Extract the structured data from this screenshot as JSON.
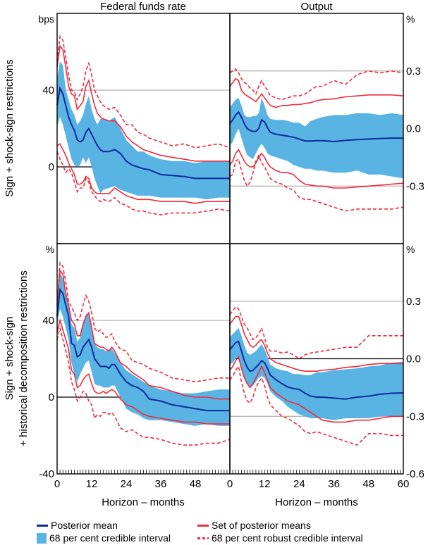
{
  "chart_data": {
    "type": "line",
    "title": "",
    "column_titles": [
      "Federal funds rate",
      "Output"
    ],
    "row_titles": [
      [
        "Sign + shock-sign restrictions"
      ],
      [
        "Sign + shock-sign",
        "+ historical decomposition restrictions"
      ]
    ],
    "xlabel": "Horizon – months",
    "x_ticks": [
      0,
      12,
      24,
      36,
      48,
      60
    ],
    "x_tick_labels_left": [
      "0",
      "12",
      "24",
      "36",
      "48"
    ],
    "x_tick_labels_right": [
      "0",
      "12",
      "24",
      "36",
      "48",
      "60"
    ],
    "xlim": [
      0,
      60
    ],
    "left_axis": {
      "units_top": "bps",
      "units_bottom": "%",
      "ylim": [
        -40,
        80
      ],
      "ticks": [
        -40,
        0,
        40
      ],
      "tick_labels": [
        "-40",
        "0",
        "40"
      ]
    },
    "right_axis": {
      "units_top": "%",
      "units_bottom": "%",
      "ylim": [
        -0.6,
        0.6
      ],
      "ticks": [
        -0.6,
        -0.3,
        0.0,
        0.3
      ],
      "tick_labels": [
        "-0.6",
        "-0.3",
        "0.0",
        "0.3"
      ]
    },
    "legend": [
      {
        "key": "mean",
        "label": "Posterior mean",
        "color": "#0b2a9c",
        "style": "solid"
      },
      {
        "key": "set",
        "label": "Set of posterior means",
        "color": "#ee2b3b",
        "style": "solid"
      },
      {
        "key": "ci",
        "label": "68 per cent credible interval",
        "color": "#5ab4e3",
        "style": "area"
      },
      {
        "key": "robust",
        "label": "68 per cent robust credible interval",
        "color": "#ee2b3b",
        "style": "dashed"
      }
    ],
    "legend_position": "bottom",
    "panels": [
      {
        "id": "top-left",
        "row": 0,
        "col": 0,
        "variable": "Federal funds rate",
        "units": "bps",
        "x": [
          0,
          1,
          2,
          3,
          4,
          5,
          6,
          7,
          8,
          9,
          10,
          11,
          12,
          13,
          14,
          15,
          16,
          18,
          20,
          22,
          24,
          26,
          28,
          30,
          32,
          36,
          40,
          44,
          48,
          52,
          56,
          60
        ],
        "mean": [
          32,
          41,
          38,
          32,
          26,
          22,
          19,
          14,
          13,
          14,
          18,
          20,
          17,
          14,
          11,
          9,
          8,
          8,
          9,
          7,
          3,
          1,
          0,
          -1,
          -1.5,
          -4,
          -4.5,
          -5,
          -6,
          -6,
          -6,
          -6
        ],
        "ci_upper": [
          46,
          55,
          53,
          40,
          35,
          30,
          27,
          22,
          24,
          27,
          33,
          37,
          30,
          25,
          22,
          25,
          25,
          24,
          26,
          20,
          14,
          11,
          8,
          8,
          6,
          4,
          3,
          3,
          2,
          3,
          3,
          3
        ],
        "ci_lower": [
          21,
          26,
          22,
          16,
          10,
          4,
          1,
          0,
          1,
          5,
          2,
          5,
          0,
          -6,
          -10,
          -14,
          -12,
          -11,
          -10,
          -12,
          -13,
          -14,
          -15,
          -15,
          -15,
          -16,
          -16,
          -16,
          -16,
          -17,
          -16,
          -16
        ],
        "set_upper": [
          52,
          63,
          61,
          52,
          42,
          38,
          37,
          30,
          32,
          34,
          42,
          45,
          38,
          32,
          28,
          26,
          25,
          24,
          24,
          21,
          16,
          13,
          11,
          9,
          8,
          6,
          5,
          4,
          3,
          3,
          3,
          3
        ],
        "set_lower": [
          11,
          12,
          9,
          6,
          2,
          -1,
          -4,
          -9,
          -9,
          -8,
          -5,
          -6,
          -11,
          -13,
          -14,
          -14,
          -14,
          -14,
          -11,
          -13,
          -15,
          -16,
          -17,
          -17,
          -17,
          -18,
          -18,
          -18,
          -19,
          -18,
          -18,
          -18
        ],
        "robust_upper": [
          55,
          68,
          66,
          57,
          48,
          40,
          39,
          35,
          38,
          42,
          50,
          54,
          48,
          40,
          37,
          34,
          32,
          30,
          31,
          27,
          22,
          22,
          18,
          17,
          15,
          13,
          11,
          12,
          10,
          11,
          12,
          10
        ],
        "robust_lower": [
          8,
          4,
          1,
          -3,
          -1,
          -3,
          -8,
          -13,
          -11,
          -11,
          -6,
          -8,
          -13,
          -15,
          -17,
          -18,
          -17,
          -18,
          -16,
          -19,
          -20,
          -22,
          -23,
          -23,
          -24,
          -25,
          -24,
          -24,
          -24,
          -23,
          -22,
          -23
        ]
      },
      {
        "id": "top-right",
        "row": 0,
        "col": 1,
        "variable": "Output",
        "units": "%",
        "x": [
          0,
          1,
          2,
          3,
          4,
          5,
          6,
          7,
          8,
          9,
          10,
          11,
          12,
          13,
          14,
          16,
          18,
          20,
          22,
          24,
          26,
          28,
          30,
          32,
          36,
          40,
          44,
          48,
          52,
          56,
          60
        ],
        "mean": [
          0.025,
          0.045,
          0.07,
          0.085,
          0.06,
          0.025,
          0.0,
          -0.01,
          -0.015,
          -0.015,
          0.0,
          0.045,
          0.035,
          0.005,
          -0.02,
          -0.03,
          -0.035,
          -0.04,
          -0.045,
          -0.055,
          -0.065,
          -0.065,
          -0.063,
          -0.063,
          -0.068,
          -0.062,
          -0.058,
          -0.055,
          -0.052,
          -0.05,
          -0.05
        ],
        "ci_upper": [
          0.11,
          0.13,
          0.15,
          0.16,
          0.12,
          0.07,
          0.06,
          0.06,
          0.065,
          0.065,
          0.08,
          0.16,
          0.12,
          0.07,
          0.05,
          0.045,
          0.045,
          0.04,
          0.03,
          0.03,
          0.01,
          0.04,
          0.05,
          0.06,
          0.07,
          0.07,
          0.08,
          0.08,
          0.07,
          0.08,
          0.07
        ],
        "ci_lower": [
          -0.09,
          -0.07,
          -0.03,
          0.0,
          -0.05,
          -0.1,
          -0.14,
          -0.15,
          -0.16,
          -0.13,
          -0.1,
          -0.08,
          -0.1,
          -0.13,
          -0.14,
          -0.15,
          -0.16,
          -0.17,
          -0.19,
          -0.2,
          -0.21,
          -0.21,
          -0.22,
          -0.22,
          -0.23,
          -0.23,
          -0.22,
          -0.24,
          -0.24,
          -0.25,
          -0.26
        ],
        "set_upper": [
          0.22,
          0.24,
          0.26,
          0.25,
          0.2,
          0.18,
          0.17,
          0.16,
          0.15,
          0.14,
          0.16,
          0.18,
          0.16,
          0.14,
          0.12,
          0.11,
          0.12,
          0.12,
          0.125,
          0.125,
          0.13,
          0.135,
          0.145,
          0.15,
          0.155,
          0.165,
          0.17,
          0.175,
          0.175,
          0.175,
          0.17
        ],
        "set_lower": [
          -0.19,
          -0.17,
          -0.13,
          -0.11,
          -0.14,
          -0.17,
          -0.19,
          -0.2,
          -0.2,
          -0.18,
          -0.15,
          -0.13,
          -0.15,
          -0.18,
          -0.2,
          -0.22,
          -0.23,
          -0.23,
          -0.24,
          -0.27,
          -0.29,
          -0.295,
          -0.3,
          -0.3,
          -0.31,
          -0.31,
          -0.305,
          -0.3,
          -0.295,
          -0.29,
          -0.285
        ],
        "robust_upper": [
          0.29,
          0.3,
          0.31,
          0.29,
          0.26,
          0.24,
          0.23,
          0.21,
          0.2,
          0.18,
          0.22,
          0.25,
          0.22,
          0.2,
          0.17,
          0.16,
          0.15,
          0.16,
          0.17,
          0.17,
          0.18,
          0.2,
          0.22,
          0.22,
          0.25,
          0.23,
          0.28,
          0.3,
          0.29,
          0.3,
          0.29
        ],
        "robust_lower": [
          -0.25,
          -0.24,
          -0.17,
          -0.16,
          -0.22,
          -0.27,
          -0.3,
          -0.28,
          -0.23,
          -0.17,
          -0.14,
          -0.18,
          -0.2,
          -0.23,
          -0.26,
          -0.28,
          -0.29,
          -0.31,
          -0.32,
          -0.36,
          -0.37,
          -0.37,
          -0.38,
          -0.39,
          -0.41,
          -0.43,
          -0.42,
          -0.42,
          -0.42,
          -0.42,
          -0.41
        ]
      },
      {
        "id": "bottom-left",
        "row": 1,
        "col": 0,
        "variable": "Federal funds rate",
        "units": "%",
        "x": [
          0,
          1,
          2,
          3,
          4,
          5,
          6,
          7,
          8,
          9,
          10,
          11,
          12,
          13,
          14,
          15,
          16,
          17,
          18,
          19,
          20,
          22,
          24,
          26,
          28,
          30,
          32,
          36,
          40,
          44,
          48,
          52,
          56,
          60
        ],
        "mean": [
          42,
          56,
          54,
          48,
          42,
          28,
          27,
          21,
          22,
          26,
          28,
          30,
          26,
          20,
          18,
          16,
          16,
          16,
          15,
          17,
          17,
          12,
          8,
          6,
          5,
          3,
          -1,
          -2,
          -4,
          -5,
          -6,
          -7,
          -7,
          -7
        ],
        "ci_upper": [
          49,
          65,
          62,
          54,
          48,
          38,
          36,
          29,
          31,
          37,
          43,
          44,
          35,
          28,
          26,
          25,
          25,
          24,
          25,
          25,
          23,
          18,
          14,
          12,
          10,
          8,
          6,
          4,
          3,
          2,
          2,
          3,
          4,
          4
        ],
        "ci_lower": [
          38,
          46,
          42,
          36,
          30,
          18,
          12,
          8,
          12,
          15,
          18,
          19,
          13,
          7,
          6,
          6,
          5,
          5,
          5,
          6,
          6,
          0,
          -6,
          -8,
          -9,
          -11,
          -12,
          -12,
          -13,
          -14,
          -15,
          -14,
          -15,
          -15
        ],
        "set_upper": [
          50,
          66,
          64,
          54,
          48,
          40,
          38,
          32,
          32,
          38,
          42,
          44,
          36,
          28,
          27,
          26,
          26,
          25,
          24,
          26,
          24,
          18,
          16,
          13,
          11,
          9,
          6,
          5,
          3,
          1,
          0,
          0,
          -1,
          -1
        ],
        "set_lower": [
          34,
          40,
          35,
          30,
          25,
          14,
          12,
          5,
          6,
          9,
          11,
          12,
          7,
          3,
          2,
          2,
          3,
          2,
          3,
          4,
          3,
          -1,
          -4,
          -5,
          -7,
          -9,
          -10,
          -11,
          -12,
          -13,
          -13,
          -14,
          -14,
          -14
        ],
        "robust_upper": [
          48,
          70,
          68,
          60,
          50,
          47,
          44,
          40,
          42,
          48,
          53,
          50,
          44,
          36,
          34,
          35,
          33,
          31,
          32,
          33,
          29,
          25,
          24,
          19,
          18,
          17,
          15,
          13,
          10,
          9,
          8,
          9,
          10,
          10
        ],
        "robust_lower": [
          30,
          36,
          30,
          24,
          18,
          8,
          4,
          -2,
          0,
          3,
          2,
          -2,
          -4,
          -11,
          -9,
          -10,
          -8,
          -8,
          -9,
          -8,
          -10,
          -16,
          -18,
          -17,
          -19,
          -21,
          -21,
          -22,
          -24,
          -25,
          -25,
          -24,
          -24,
          -22
        ]
      },
      {
        "id": "bottom-right",
        "row": 1,
        "col": 1,
        "variable": "Output",
        "units": "%",
        "x": [
          0,
          1,
          2,
          3,
          4,
          5,
          6,
          7,
          8,
          9,
          10,
          11,
          12,
          13,
          14,
          16,
          18,
          20,
          22,
          24,
          26,
          28,
          30,
          32,
          36,
          40,
          44,
          48,
          52,
          56,
          60
        ],
        "mean": [
          0.048,
          0.065,
          0.085,
          0.09,
          0.04,
          -0.01,
          -0.045,
          -0.066,
          -0.06,
          -0.044,
          -0.03,
          -0.01,
          -0.02,
          -0.05,
          -0.085,
          -0.11,
          -0.13,
          -0.147,
          -0.155,
          -0.16,
          -0.18,
          -0.195,
          -0.2,
          -0.2,
          -0.205,
          -0.21,
          -0.2,
          -0.195,
          -0.185,
          -0.18,
          -0.178
        ],
        "ci_upper": [
          0.11,
          0.13,
          0.145,
          0.16,
          0.12,
          0.07,
          0.03,
          0.02,
          0.03,
          0.04,
          0.06,
          0.075,
          0.05,
          0.01,
          -0.03,
          -0.05,
          -0.06,
          -0.065,
          -0.08,
          -0.08,
          -0.085,
          -0.085,
          -0.07,
          -0.07,
          -0.06,
          -0.055,
          -0.05,
          -0.04,
          -0.035,
          -0.02,
          -0.015
        ],
        "ci_lower": [
          -0.03,
          -0.02,
          0.0,
          0.01,
          -0.05,
          -0.1,
          -0.13,
          -0.15,
          -0.14,
          -0.12,
          -0.1,
          -0.09,
          -0.1,
          -0.13,
          -0.17,
          -0.2,
          -0.22,
          -0.25,
          -0.27,
          -0.29,
          -0.3,
          -0.31,
          -0.31,
          -0.31,
          -0.32,
          -0.31,
          -0.31,
          -0.31,
          -0.3,
          -0.3,
          -0.3
        ],
        "set_upper": [
          0.18,
          0.2,
          0.22,
          0.22,
          0.18,
          0.13,
          0.1,
          0.07,
          0.06,
          0.07,
          0.09,
          0.1,
          0.07,
          0.03,
          0.0,
          -0.02,
          -0.03,
          -0.04,
          -0.05,
          -0.06,
          -0.065,
          -0.065,
          -0.065,
          -0.06,
          -0.055,
          -0.045,
          -0.04,
          -0.03,
          -0.025,
          -0.025,
          -0.025
        ],
        "set_lower": [
          -0.06,
          -0.04,
          -0.01,
          0.01,
          -0.05,
          -0.1,
          -0.13,
          -0.15,
          -0.13,
          -0.1,
          -0.07,
          -0.04,
          -0.07,
          -0.11,
          -0.15,
          -0.18,
          -0.2,
          -0.22,
          -0.23,
          -0.24,
          -0.26,
          -0.28,
          -0.3,
          -0.32,
          -0.33,
          -0.33,
          -0.32,
          -0.32,
          -0.31,
          -0.3,
          -0.3
        ],
        "robust_upper": [
          0.23,
          0.25,
          0.27,
          0.26,
          0.22,
          0.18,
          0.16,
          0.13,
          0.1,
          0.11,
          0.13,
          0.16,
          0.11,
          0.06,
          0.04,
          0.04,
          0.03,
          0.035,
          0.02,
          0.0,
          0.02,
          0.03,
          0.035,
          0.04,
          0.05,
          0.06,
          0.06,
          0.12,
          0.12,
          0.12,
          0.12
        ],
        "robust_lower": [
          -0.11,
          -0.09,
          -0.06,
          -0.04,
          -0.12,
          -0.18,
          -0.22,
          -0.23,
          -0.2,
          -0.15,
          -0.12,
          -0.1,
          -0.14,
          -0.2,
          -0.24,
          -0.27,
          -0.3,
          -0.31,
          -0.33,
          -0.35,
          -0.38,
          -0.39,
          -0.38,
          -0.39,
          -0.41,
          -0.43,
          -0.45,
          -0.39,
          -0.39,
          -0.4,
          -0.4
        ]
      }
    ]
  }
}
